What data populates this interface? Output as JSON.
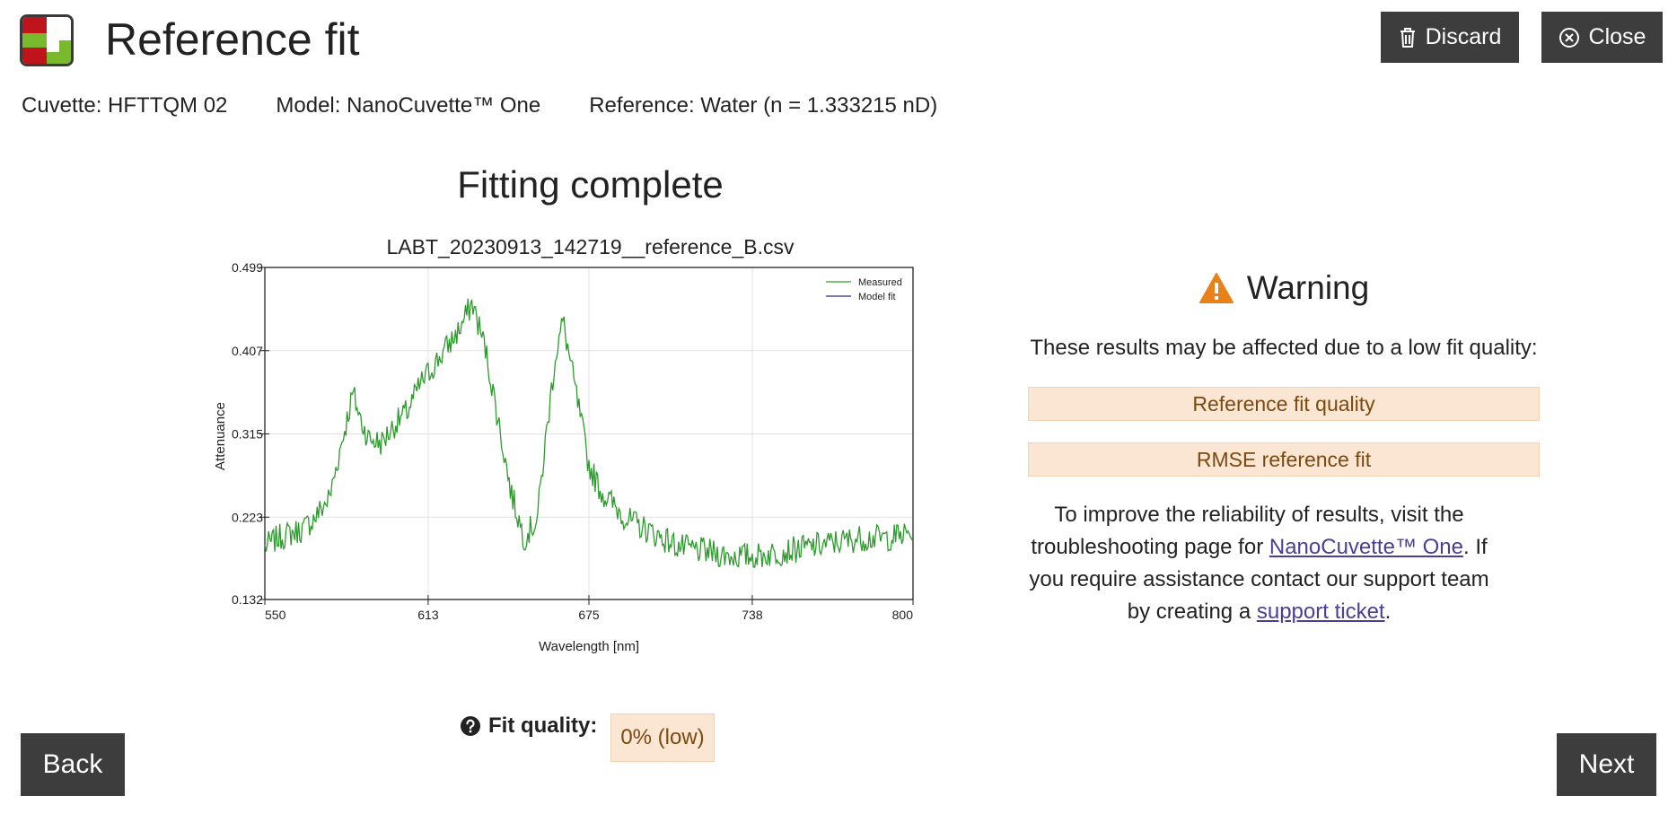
{
  "header": {
    "title": "Reference fit",
    "discard_label": "Discard",
    "close_label": "Close"
  },
  "meta": {
    "cuvette": "Cuvette: HFTTQM 02",
    "model": "Model: NanoCuvette™ One",
    "reference": "Reference: Water (n = 1.333215 nD)"
  },
  "status": {
    "title": "Fitting complete"
  },
  "chart_data": {
    "type": "line",
    "title": "LABT_20230913_142719__reference_B.csv",
    "xlabel": "Wavelength [nm]",
    "ylabel": "Attenuance",
    "xlim": [
      550,
      800
    ],
    "ylim": [
      0.132,
      0.499
    ],
    "xticks": [
      "550",
      "613",
      "675",
      "738",
      "800"
    ],
    "yticks": [
      "0.132",
      "0.223",
      "0.315",
      "0.407",
      "0.499"
    ],
    "grid": true,
    "legend_position": "top-right",
    "series": [
      {
        "name": "Measured",
        "color": "#2e9a2e",
        "x": [
          550,
          555,
          560,
          565,
          570,
          575,
          580,
          584,
          587,
          590,
          595,
          600,
          605,
          610,
          615,
          620,
          625,
          630,
          635,
          640,
          645,
          650,
          655,
          658,
          662,
          665,
          670,
          675,
          680,
          685,
          690,
          700,
          710,
          720,
          730,
          740,
          750,
          760,
          770,
          780,
          790,
          800
        ],
        "y": [
          0.19,
          0.2,
          0.205,
          0.21,
          0.225,
          0.245,
          0.31,
          0.36,
          0.33,
          0.31,
          0.305,
          0.325,
          0.34,
          0.37,
          0.39,
          0.41,
          0.43,
          0.46,
          0.41,
          0.33,
          0.25,
          0.2,
          0.22,
          0.3,
          0.4,
          0.44,
          0.36,
          0.28,
          0.25,
          0.235,
          0.22,
          0.205,
          0.19,
          0.185,
          0.18,
          0.18,
          0.185,
          0.19,
          0.195,
          0.2,
          0.2,
          0.205
        ]
      },
      {
        "name": "Model fit",
        "color": "#2b2b8a",
        "x": [],
        "y": []
      }
    ]
  },
  "warning": {
    "title": "Warning",
    "subtitle": "These results may be affected due to a low fit quality:",
    "items": [
      "Reference fit quality",
      "RMSE reference fit"
    ],
    "help_1": "To improve the reliability of results, visit the troubleshooting page for ",
    "help_link_1": "NanoCuvette™ One",
    "help_2": ". If you require assistance contact our support team by creating a ",
    "help_link_2": "support ticket",
    "help_3": "."
  },
  "fit_quality": {
    "label": "Fit quality:",
    "value": "0% (low)"
  },
  "nav": {
    "back_label": "Back",
    "next_label": "Next"
  },
  "colors": {
    "button_bg": "#3d3d3d",
    "warning_bg": "#fbe6d3",
    "warning_icon": "#e8811a",
    "measured": "#2e9a2e",
    "model_fit": "#2b2b8a"
  }
}
